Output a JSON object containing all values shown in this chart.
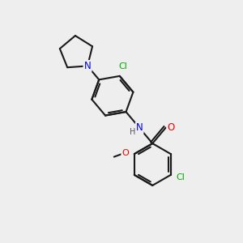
{
  "background_color": "#eeeeee",
  "bond_color": "#1a1a1a",
  "atom_colors": {
    "N": "#0000ee",
    "O": "#ee0000",
    "Cl": "#00aa00",
    "C": "#1a1a1a",
    "H": "#555555"
  },
  "figsize": [
    3.0,
    3.0
  ],
  "dpi": 100
}
